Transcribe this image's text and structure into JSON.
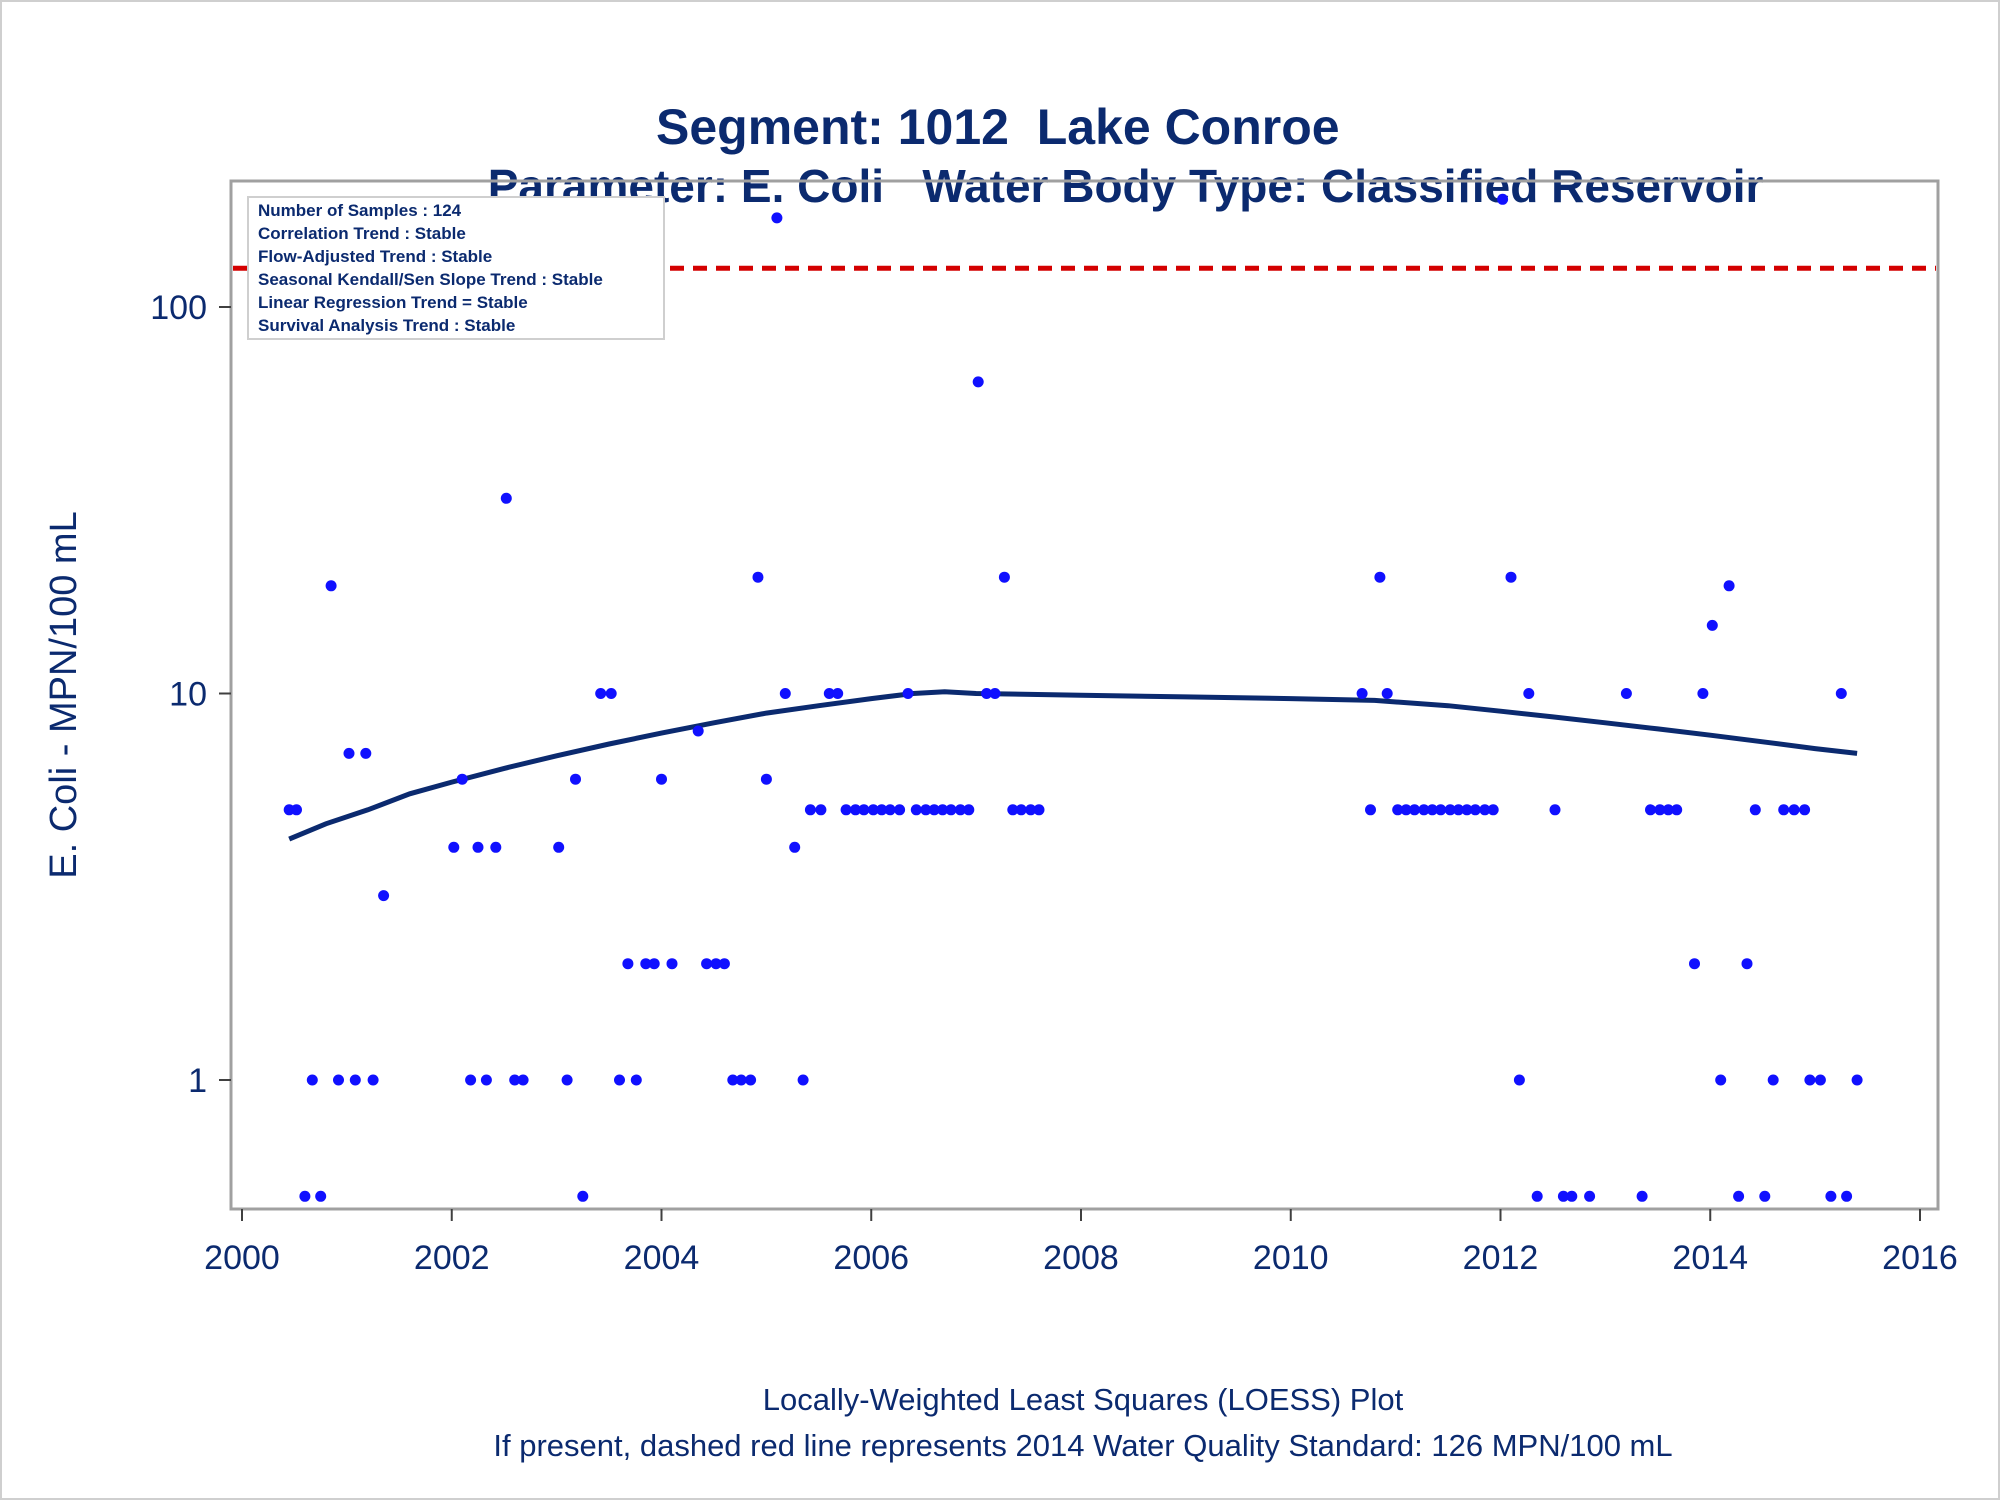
{
  "titles": {
    "main": "Segment: 1012  Lake Conroe",
    "sub": "Parameter: E. Coli   Water Body Type: Classified Reservoir"
  },
  "footnotes": {
    "line1": "Locally-Weighted Least Squares (LOESS) Plot",
    "line2": "If present, dashed red line represents 2014 Water Quality Standard: 126 MPN/100 mL"
  },
  "info_box": [
    "Number of Samples : 124",
    "Correlation Trend : Stable",
    "Flow-Adjusted Trend : Stable",
    "Seasonal Kendall/Sen Slope Trend : Stable",
    "Linear Regression Trend = Stable",
    "Survival Analysis Trend : Stable"
  ],
  "colors": {
    "points": "#1010ff",
    "loess": "#0b2a6f",
    "standard_line": "#d40000",
    "text": "#0b2a6f",
    "frame": "#a0a0a0"
  },
  "chart_data": {
    "type": "scatter",
    "xlabel": "",
    "ylabel": "E. Coli - MPN/100 mL",
    "y_scale": "log",
    "xlim": [
      2000,
      2016
    ],
    "ylim": [
      0.5,
      200
    ],
    "x_ticks": [
      "2000",
      "2002",
      "2004",
      "2006",
      "2008",
      "2010",
      "2012",
      "2014",
      "2016"
    ],
    "y_ticks": [
      "1",
      "10",
      "100"
    ],
    "grid": false,
    "standard_line": {
      "y": 126,
      "style": "dashed"
    },
    "series": [
      {
        "type": "scatter",
        "points": [
          [
            2000.45,
            5
          ],
          [
            2000.52,
            5
          ],
          [
            2000.6,
            0.5
          ],
          [
            2000.67,
            1
          ],
          [
            2000.75,
            0.5
          ],
          [
            2000.85,
            19
          ],
          [
            2000.92,
            1
          ],
          [
            2001.02,
            7
          ],
          [
            2001.08,
            1
          ],
          [
            2001.18,
            7
          ],
          [
            2001.25,
            1
          ],
          [
            2001.35,
            3
          ],
          [
            2002.02,
            4
          ],
          [
            2002.1,
            6
          ],
          [
            2002.18,
            1
          ],
          [
            2002.25,
            4
          ],
          [
            2002.33,
            1
          ],
          [
            2002.42,
            4
          ],
          [
            2002.52,
            32
          ],
          [
            2002.6,
            1
          ],
          [
            2002.68,
            1
          ],
          [
            2003.02,
            4
          ],
          [
            2003.1,
            1
          ],
          [
            2003.18,
            6
          ],
          [
            2003.25,
            0.5
          ],
          [
            2003.42,
            10
          ],
          [
            2003.52,
            10
          ],
          [
            2003.6,
            1
          ],
          [
            2003.68,
            2
          ],
          [
            2003.76,
            1
          ],
          [
            2003.85,
            2
          ],
          [
            2003.93,
            2
          ],
          [
            2004.0,
            6
          ],
          [
            2004.1,
            2
          ],
          [
            2004.35,
            8
          ],
          [
            2004.43,
            2
          ],
          [
            2004.52,
            2
          ],
          [
            2004.6,
            2
          ],
          [
            2004.68,
            1
          ],
          [
            2004.76,
            1
          ],
          [
            2004.85,
            1
          ],
          [
            2004.92,
            20
          ],
          [
            2005.0,
            6
          ],
          [
            2005.1,
            170
          ],
          [
            2005.18,
            10
          ],
          [
            2005.27,
            4
          ],
          [
            2005.35,
            1
          ],
          [
            2005.42,
            5
          ],
          [
            2005.52,
            5
          ],
          [
            2005.6,
            10
          ],
          [
            2005.68,
            10
          ],
          [
            2005.76,
            5
          ],
          [
            2005.85,
            5
          ],
          [
            2005.93,
            5
          ],
          [
            2006.02,
            5
          ],
          [
            2006.1,
            5
          ],
          [
            2006.18,
            5
          ],
          [
            2006.27,
            5
          ],
          [
            2006.35,
            10
          ],
          [
            2006.43,
            5
          ],
          [
            2006.52,
            5
          ],
          [
            2006.6,
            5
          ],
          [
            2006.68,
            5
          ],
          [
            2006.76,
            5
          ],
          [
            2006.85,
            5
          ],
          [
            2006.93,
            5
          ],
          [
            2007.02,
            64
          ],
          [
            2007.1,
            10
          ],
          [
            2007.18,
            10
          ],
          [
            2007.27,
            20
          ],
          [
            2007.35,
            5
          ],
          [
            2007.43,
            5
          ],
          [
            2007.52,
            5
          ],
          [
            2007.6,
            5
          ],
          [
            2010.68,
            10
          ],
          [
            2010.76,
            5
          ],
          [
            2010.85,
            20
          ],
          [
            2010.92,
            10
          ],
          [
            2011.02,
            5
          ],
          [
            2011.1,
            5
          ],
          [
            2011.18,
            5
          ],
          [
            2011.27,
            5
          ],
          [
            2011.35,
            5
          ],
          [
            2011.43,
            5
          ],
          [
            2011.52,
            5
          ],
          [
            2011.6,
            5
          ],
          [
            2011.68,
            5
          ],
          [
            2011.76,
            5
          ],
          [
            2011.85,
            5
          ],
          [
            2011.93,
            5
          ],
          [
            2012.02,
            190
          ],
          [
            2012.1,
            20
          ],
          [
            2012.18,
            1
          ],
          [
            2012.27,
            10
          ],
          [
            2012.35,
            0.5
          ],
          [
            2012.52,
            5
          ],
          [
            2012.6,
            0.5
          ],
          [
            2012.68,
            0.5
          ],
          [
            2012.85,
            0.5
          ],
          [
            2013.2,
            10
          ],
          [
            2013.35,
            0.5
          ],
          [
            2013.43,
            5
          ],
          [
            2013.52,
            5
          ],
          [
            2013.6,
            5
          ],
          [
            2013.68,
            5
          ],
          [
            2013.85,
            2
          ],
          [
            2013.93,
            10
          ],
          [
            2014.02,
            15
          ],
          [
            2014.1,
            1
          ],
          [
            2014.18,
            19
          ],
          [
            2014.27,
            0.5
          ],
          [
            2014.35,
            2
          ],
          [
            2014.43,
            5
          ],
          [
            2014.52,
            0.5
          ],
          [
            2014.6,
            1
          ],
          [
            2014.7,
            5
          ],
          [
            2014.8,
            5
          ],
          [
            2014.9,
            5
          ],
          [
            2014.95,
            1
          ],
          [
            2015.05,
            1
          ],
          [
            2015.15,
            0.5
          ],
          [
            2015.25,
            10
          ],
          [
            2015.3,
            0.5
          ],
          [
            2015.4,
            1
          ]
        ]
      },
      {
        "type": "line",
        "points": [
          [
            2000.45,
            4.2
          ],
          [
            2000.8,
            4.6
          ],
          [
            2001.2,
            5.0
          ],
          [
            2001.6,
            5.5
          ],
          [
            2002.0,
            5.9
          ],
          [
            2002.5,
            6.4
          ],
          [
            2003.0,
            6.9
          ],
          [
            2003.5,
            7.4
          ],
          [
            2004.0,
            7.9
          ],
          [
            2004.5,
            8.4
          ],
          [
            2005.0,
            8.9
          ],
          [
            2005.5,
            9.3
          ],
          [
            2006.0,
            9.7
          ],
          [
            2006.4,
            10.0
          ],
          [
            2006.7,
            10.1
          ],
          [
            2007.0,
            10.0
          ],
          [
            2008.0,
            9.9
          ],
          [
            2009.0,
            9.8
          ],
          [
            2010.0,
            9.7
          ],
          [
            2010.8,
            9.6
          ],
          [
            2011.5,
            9.3
          ],
          [
            2012.0,
            9.0
          ],
          [
            2012.5,
            8.7
          ],
          [
            2013.0,
            8.4
          ],
          [
            2013.5,
            8.1
          ],
          [
            2014.0,
            7.8
          ],
          [
            2014.5,
            7.5
          ],
          [
            2015.0,
            7.2
          ],
          [
            2015.4,
            7.0
          ]
        ]
      }
    ]
  }
}
